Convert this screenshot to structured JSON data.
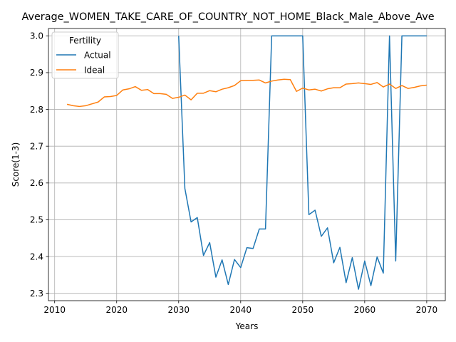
{
  "chart_data": {
    "type": "line",
    "title": "Average_WOMEN_TAKE_CARE_OF_COUNTRY_NOT_HOME_Black_Male_Above_Ave",
    "xlabel": "Years",
    "ylabel": "Score(1-3)",
    "xlim": [
      2009,
      2073
    ],
    "ylim": [
      2.28,
      3.02
    ],
    "xticks": [
      2010,
      2020,
      2030,
      2040,
      2050,
      2060,
      2070
    ],
    "yticks": [
      2.3,
      2.4,
      2.5,
      2.6,
      2.7,
      2.8,
      2.9,
      3.0
    ],
    "grid": true,
    "legend": {
      "title": "Fertility",
      "position": "upper-left"
    },
    "series": [
      {
        "name": "Actual",
        "color": "#1f77b4",
        "points": [
          [
            2030,
            3.0
          ],
          [
            2031,
            2.585
          ],
          [
            2032,
            2.494
          ],
          [
            2033,
            2.506
          ],
          [
            2034,
            2.403
          ],
          [
            2035,
            2.438
          ],
          [
            2036,
            2.344
          ],
          [
            2037,
            2.391
          ],
          [
            2038,
            2.324
          ],
          [
            2039,
            2.392
          ],
          [
            2040,
            2.37
          ],
          [
            2041,
            2.424
          ],
          [
            2042,
            2.422
          ],
          [
            2043,
            2.475
          ],
          [
            2044,
            2.475
          ],
          [
            2045,
            3.0
          ],
          [
            2046,
            3.0
          ],
          [
            2047,
            3.0
          ],
          [
            2048,
            3.0
          ],
          [
            2049,
            3.0
          ],
          [
            2050,
            3.0
          ],
          [
            2051,
            2.514
          ],
          [
            2052,
            2.526
          ],
          [
            2053,
            2.455
          ],
          [
            2054,
            2.478
          ],
          [
            2055,
            2.383
          ],
          [
            2056,
            2.425
          ],
          [
            2057,
            2.329
          ],
          [
            2058,
            2.397
          ],
          [
            2059,
            2.311
          ],
          [
            2060,
            2.388
          ],
          [
            2061,
            2.321
          ],
          [
            2062,
            2.399
          ],
          [
            2063,
            2.355
          ],
          [
            2064,
            3.0
          ],
          [
            2065,
            2.388
          ],
          [
            2066,
            3.0
          ],
          [
            2067,
            3.0
          ],
          [
            2068,
            3.0
          ],
          [
            2069,
            3.0
          ],
          [
            2070,
            3.0
          ]
        ]
      },
      {
        "name": "Ideal",
        "color": "#ff7f0e",
        "points": [
          [
            2012,
            2.814
          ],
          [
            2013,
            2.81
          ],
          [
            2014,
            2.808
          ],
          [
            2015,
            2.81
          ],
          [
            2016,
            2.815
          ],
          [
            2017,
            2.82
          ],
          [
            2018,
            2.834
          ],
          [
            2019,
            2.835
          ],
          [
            2020,
            2.838
          ],
          [
            2021,
            2.853
          ],
          [
            2022,
            2.856
          ],
          [
            2023,
            2.862
          ],
          [
            2024,
            2.852
          ],
          [
            2025,
            2.854
          ],
          [
            2026,
            2.843
          ],
          [
            2027,
            2.843
          ],
          [
            2028,
            2.841
          ],
          [
            2029,
            2.83
          ],
          [
            2030,
            2.833
          ],
          [
            2031,
            2.839
          ],
          [
            2032,
            2.826
          ],
          [
            2033,
            2.844
          ],
          [
            2034,
            2.844
          ],
          [
            2035,
            2.851
          ],
          [
            2036,
            2.848
          ],
          [
            2037,
            2.855
          ],
          [
            2038,
            2.859
          ],
          [
            2039,
            2.865
          ],
          [
            2040,
            2.878
          ],
          [
            2041,
            2.879
          ],
          [
            2042,
            2.879
          ],
          [
            2043,
            2.88
          ],
          [
            2044,
            2.872
          ],
          [
            2045,
            2.877
          ],
          [
            2046,
            2.88
          ],
          [
            2047,
            2.882
          ],
          [
            2048,
            2.881
          ],
          [
            2049,
            2.849
          ],
          [
            2050,
            2.858
          ],
          [
            2051,
            2.853
          ],
          [
            2052,
            2.855
          ],
          [
            2053,
            2.85
          ],
          [
            2054,
            2.856
          ],
          [
            2055,
            2.859
          ],
          [
            2056,
            2.859
          ],
          [
            2057,
            2.869
          ],
          [
            2058,
            2.87
          ],
          [
            2059,
            2.872
          ],
          [
            2060,
            2.87
          ],
          [
            2061,
            2.868
          ],
          [
            2062,
            2.873
          ],
          [
            2063,
            2.861
          ],
          [
            2064,
            2.869
          ],
          [
            2065,
            2.857
          ],
          [
            2066,
            2.865
          ],
          [
            2067,
            2.857
          ],
          [
            2068,
            2.86
          ],
          [
            2069,
            2.864
          ],
          [
            2070,
            2.866
          ]
        ]
      }
    ]
  }
}
